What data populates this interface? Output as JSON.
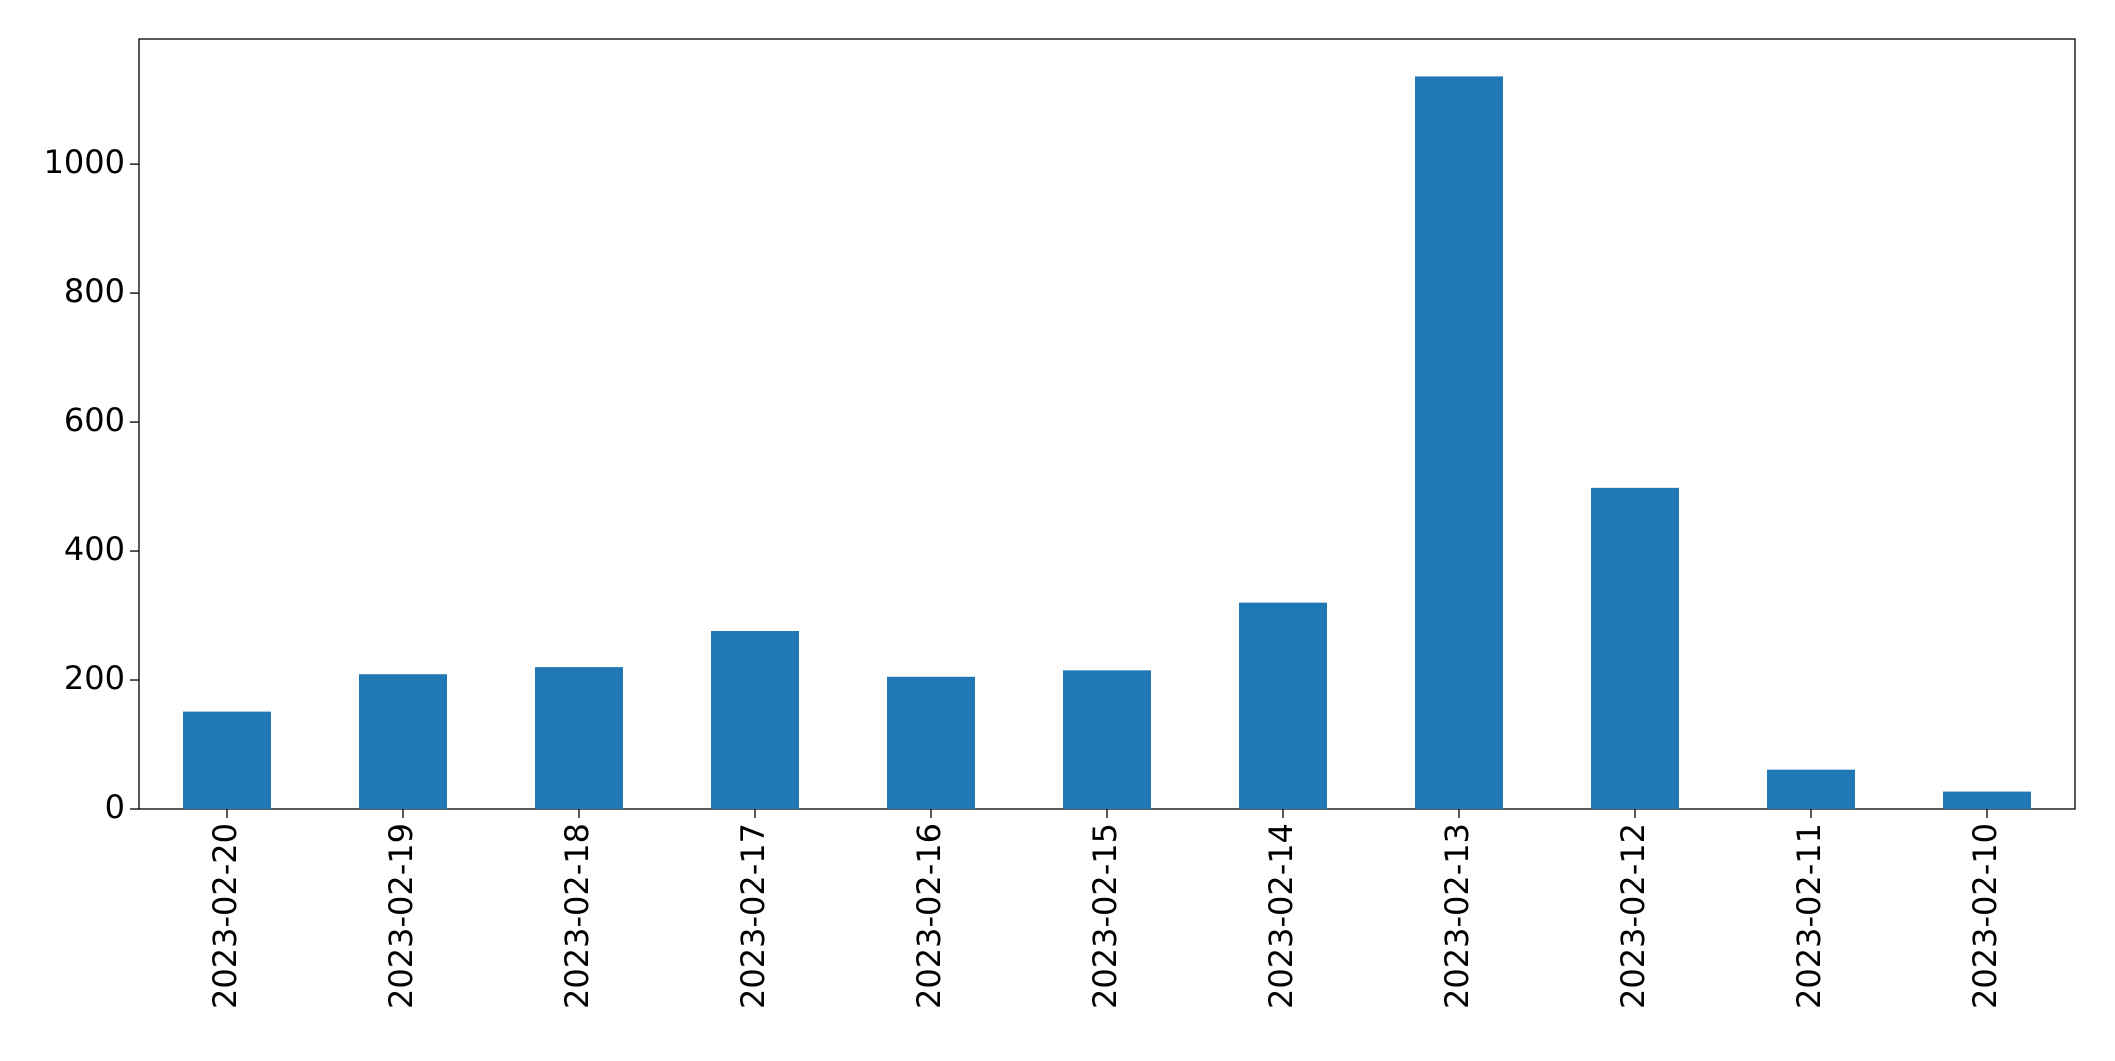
{
  "chart_data": {
    "type": "bar",
    "categories": [
      "2023-02-20",
      "2023-02-19",
      "2023-02-18",
      "2023-02-17",
      "2023-02-16",
      "2023-02-15",
      "2023-02-14",
      "2023-02-13",
      "2023-02-12",
      "2023-02-11",
      "2023-02-10"
    ],
    "values": [
      151,
      209,
      220,
      276,
      205,
      215,
      320,
      1136,
      498,
      61,
      27
    ],
    "color": "#1f77b4",
    "ylim": [
      0,
      1194
    ],
    "yticks": [
      0,
      200,
      400,
      600,
      800,
      1000
    ],
    "grid": false
  }
}
